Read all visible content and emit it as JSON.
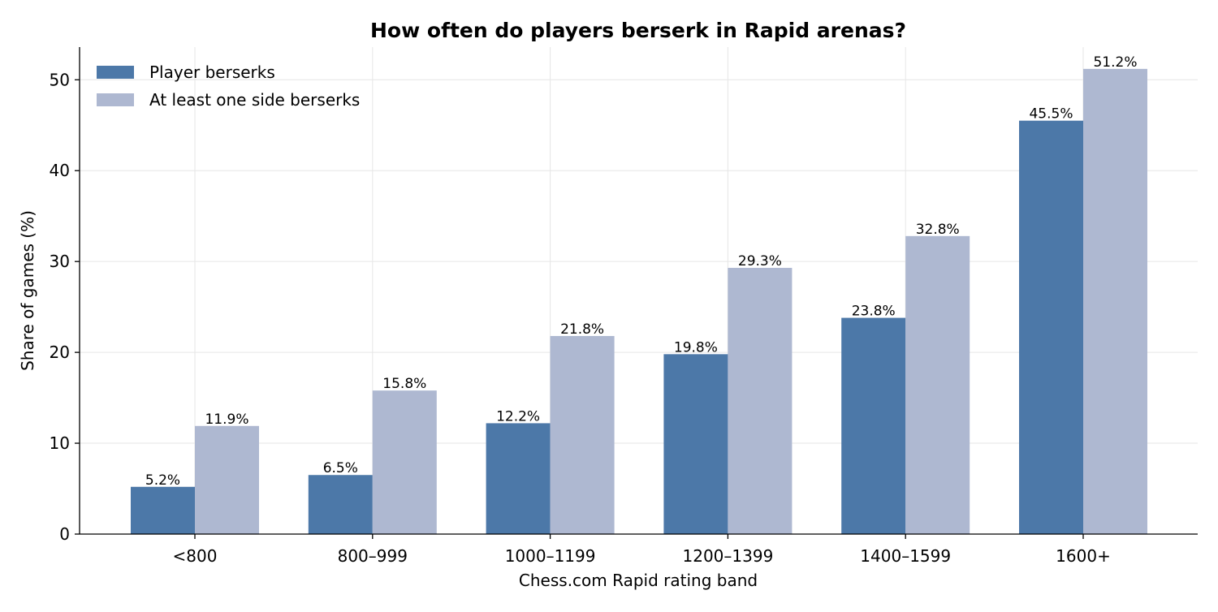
{
  "chart_data": {
    "type": "bar",
    "title": "How often do players berserk in Rapid arenas?",
    "xlabel": "Chess.com Rapid rating band",
    "ylabel": "Share of games (%)",
    "categories": [
      "<800",
      "800–999",
      "1000–1199",
      "1200–1399",
      "1400–1599",
      "1600+"
    ],
    "series": [
      {
        "name": "Player berserks",
        "color": "#4c78a8",
        "values": [
          5.2,
          6.5,
          12.2,
          19.8,
          23.8,
          45.5
        ],
        "labels": [
          "5.2%",
          "6.5%",
          "12.2%",
          "19.8%",
          "23.8%",
          "45.5%"
        ]
      },
      {
        "name": "At least one side berserks",
        "color": "#aeb8d1",
        "values": [
          11.9,
          15.8,
          21.8,
          29.3,
          32.8,
          51.2
        ],
        "labels": [
          "11.9%",
          "15.8%",
          "21.8%",
          "29.3%",
          "32.8%",
          "51.2%"
        ]
      }
    ],
    "ylim": [
      0,
      53.6
    ],
    "yticks": [
      0,
      10,
      20,
      30,
      40,
      50
    ],
    "grid": true,
    "legend_position": "top-left"
  }
}
